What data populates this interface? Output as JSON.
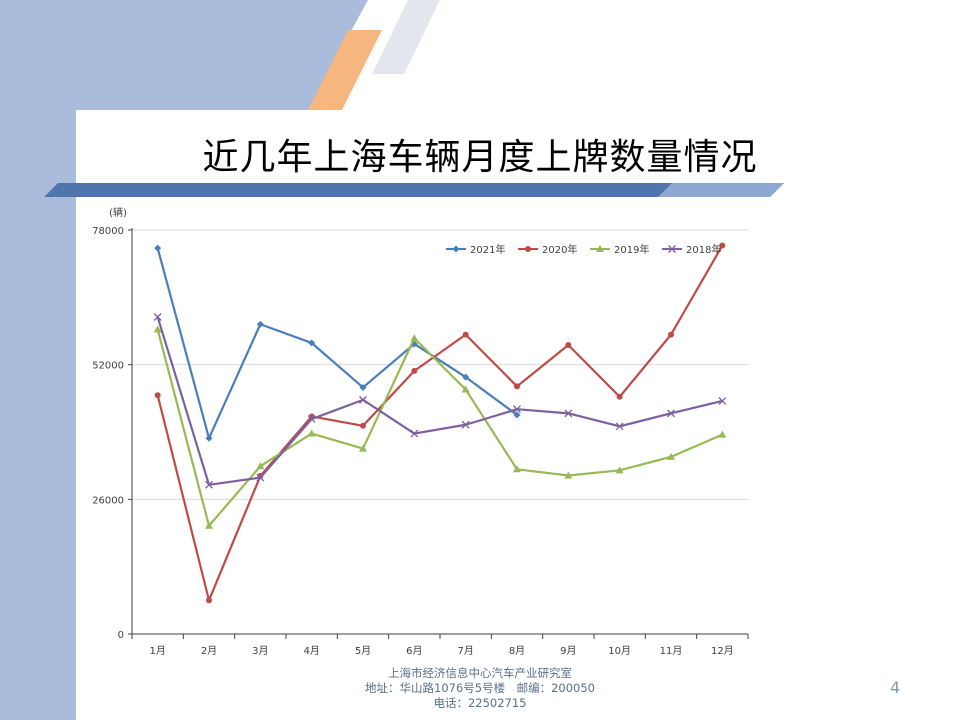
{
  "slide": {
    "title": "近几年上海车辆月度上牌数量情况",
    "page_number": "4",
    "footer": {
      "line1": "上海市经济信息中心汽车产业研究室",
      "line2": "地址：华山路1076号5号楼　邮编：200050",
      "line3": "电话：22502715"
    }
  },
  "chart_data": {
    "type": "line",
    "title": "",
    "xlabel": "",
    "ylabel": "(辆)",
    "categories": [
      "1月",
      "2月",
      "3月",
      "4月",
      "5月",
      "6月",
      "7月",
      "8月",
      "9月",
      "10月",
      "11月",
      "12月"
    ],
    "yticks": [
      0,
      26000,
      52000,
      78000
    ],
    "ytick_labels": [
      "0",
      "26000",
      "52000",
      "78000"
    ],
    "ylim": [
      0,
      78000
    ],
    "grid": true,
    "legend_position": "top-right",
    "series": [
      {
        "name": "2021年",
        "color": "#4a7ebb",
        "marker": "diamond",
        "values": [
          74500,
          37800,
          59800,
          56200,
          47600,
          56000,
          49600,
          42300,
          null,
          null,
          null,
          null
        ]
      },
      {
        "name": "2020年",
        "color": "#be4b48",
        "marker": "circle",
        "values": [
          46100,
          6500,
          30500,
          42000,
          40200,
          50800,
          57800,
          47800,
          55800,
          45800,
          57800,
          75000
        ]
      },
      {
        "name": "2019年",
        "color": "#98b954",
        "marker": "triangle",
        "values": [
          58800,
          20900,
          32400,
          38700,
          35800,
          57100,
          47200,
          31800,
          30600,
          31600,
          34200,
          38500
        ]
      },
      {
        "name": "2018年",
        "color": "#7d60a0",
        "marker": "x",
        "values": [
          61200,
          28800,
          30200,
          41500,
          45200,
          38700,
          40400,
          43400,
          42600,
          40100,
          42600,
          45000
        ]
      }
    ]
  }
}
